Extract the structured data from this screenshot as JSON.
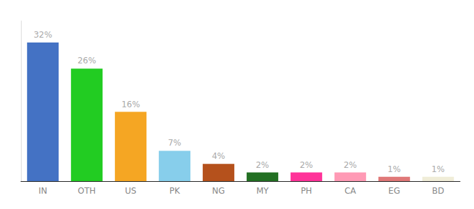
{
  "chart_data": {
    "type": "bar",
    "categories": [
      "IN",
      "OTH",
      "US",
      "PK",
      "NG",
      "MY",
      "PH",
      "CA",
      "EG",
      "BD"
    ],
    "values": [
      32,
      26,
      16,
      7,
      4,
      2,
      2,
      2,
      1,
      1
    ],
    "value_labels": [
      "32%",
      "26%",
      "16%",
      "7%",
      "4%",
      "2%",
      "2%",
      "2%",
      "1%",
      "1%"
    ],
    "colors": [
      "#4472c4",
      "#22cc22",
      "#f5a623",
      "#87ceeb",
      "#b5511c",
      "#237023",
      "#ff3399",
      "#ff9ab5",
      "#e07878",
      "#f0edd8"
    ],
    "ylim": [
      0,
      37
    ],
    "grid": false,
    "data_labels": true,
    "tick_labels": "x"
  }
}
